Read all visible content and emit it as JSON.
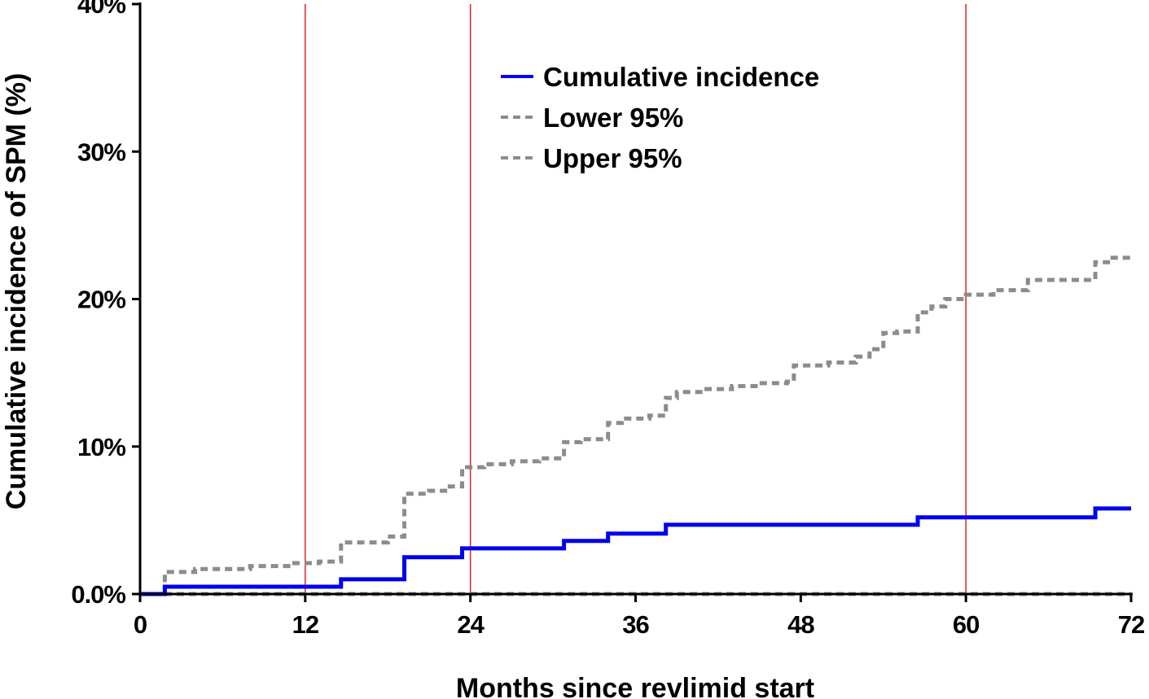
{
  "chart_data": {
    "type": "line",
    "xlabel": "Months since revlimid start",
    "ylabel": "Cumulative incidence of SPM (%)",
    "xlim": [
      0,
      72
    ],
    "ylim": [
      0,
      40
    ],
    "x_ticks": [
      0,
      12,
      24,
      36,
      48,
      60,
      72
    ],
    "x_tick_labels": [
      "0",
      "12",
      "24",
      "36",
      "48",
      "60",
      "72"
    ],
    "y_ticks": [
      0,
      10,
      20,
      30,
      40
    ],
    "y_tick_labels": [
      "0.0%",
      "10%",
      "20%",
      "30%",
      "40%"
    ],
    "reference_lines_x": [
      12,
      24,
      60
    ],
    "reference_line_color": "#e02020",
    "legend_position": "top-center",
    "grid": false,
    "series": [
      {
        "name": "Cumulative incidence",
        "style": "solid",
        "color": "#0000ee",
        "points": [
          [
            0,
            0
          ],
          [
            1.8,
            0.5
          ],
          [
            14.6,
            1.0
          ],
          [
            19.2,
            2.5
          ],
          [
            23.4,
            3.1
          ],
          [
            30.8,
            3.6
          ],
          [
            34.0,
            4.1
          ],
          [
            38.2,
            4.7
          ],
          [
            56.5,
            5.2
          ],
          [
            69.4,
            5.8
          ],
          [
            72,
            5.8
          ]
        ]
      },
      {
        "name": "Lower 95%",
        "style": "dashed",
        "color": "#8c8c8c",
        "points": [
          [
            0,
            0
          ],
          [
            72,
            0
          ]
        ]
      },
      {
        "name": "Upper 95%",
        "style": "dashed",
        "color": "#8c8c8c",
        "points": [
          [
            0,
            0
          ],
          [
            1.8,
            1.5
          ],
          [
            4,
            1.7
          ],
          [
            8,
            1.9
          ],
          [
            11,
            2.1
          ],
          [
            13,
            2.2
          ],
          [
            14.6,
            3.5
          ],
          [
            18,
            3.9
          ],
          [
            19.2,
            6.8
          ],
          [
            21,
            7.0
          ],
          [
            22.5,
            7.3
          ],
          [
            23.4,
            8.6
          ],
          [
            25,
            8.8
          ],
          [
            27,
            9.0
          ],
          [
            29,
            9.2
          ],
          [
            30.8,
            10.3
          ],
          [
            32,
            10.5
          ],
          [
            34.0,
            11.6
          ],
          [
            35,
            11.9
          ],
          [
            37,
            12.1
          ],
          [
            38.2,
            13.3
          ],
          [
            39,
            13.7
          ],
          [
            41,
            13.9
          ],
          [
            43,
            14.1
          ],
          [
            45,
            14.3
          ],
          [
            47,
            14.4
          ],
          [
            47.5,
            15.5
          ],
          [
            50,
            15.7
          ],
          [
            52,
            16.1
          ],
          [
            53,
            16.6
          ],
          [
            54,
            17.7
          ],
          [
            55,
            17.8
          ],
          [
            56.5,
            19.1
          ],
          [
            57.5,
            19.5
          ],
          [
            58.5,
            20.0
          ],
          [
            60,
            20.3
          ],
          [
            62,
            20.6
          ],
          [
            64.5,
            21.3
          ],
          [
            69.4,
            22.5
          ],
          [
            70.5,
            22.8
          ],
          [
            72,
            22.8
          ]
        ]
      }
    ]
  }
}
